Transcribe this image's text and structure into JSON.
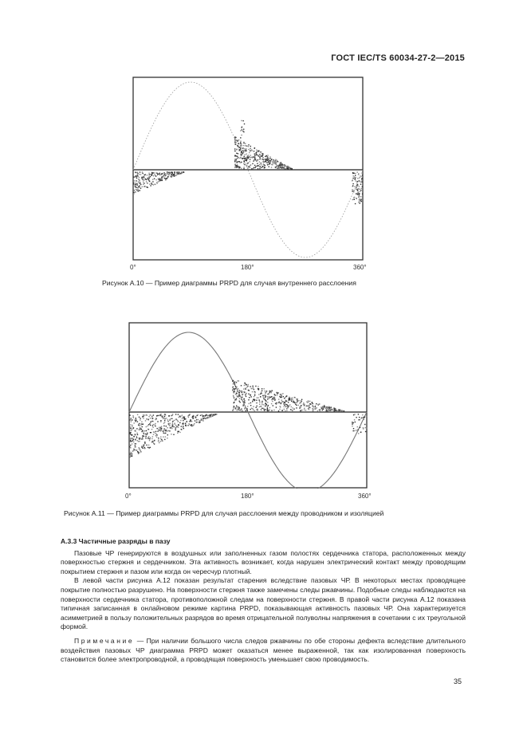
{
  "header": {
    "standard": "ГОСТ  IEC/TS 60034-27-2—2015"
  },
  "figures": [
    {
      "caption": "Рисунок А.10 — Пример диаграммы PRPD для случая внутреннего расслоения",
      "x_ticks": [
        "0°",
        "180°",
        "360°"
      ],
      "sine_style": "dotted"
    },
    {
      "caption": "Рисунок А.11 — Пример диаграммы PRPD для случая расслоения между проводником и изоляцией",
      "x_ticks": [
        "0°",
        "180°",
        "360°"
      ],
      "sine_style": "solid"
    }
  ],
  "section": {
    "heading": "А.3.3  Частичные разряды в пазу",
    "paragraphs": [
      "Пазовые ЧР генерируются в воздушных или заполненных газом полостях сердечника статора, расположенных между поверхностью стержня и сердечником. Эта активность возникает, когда нарушен электрический контакт между проводящим покрытием стержня и пазом или когда он чересчур плотный.",
      "В левой части рисунка А.12 показан результат старения вследствие пазовых ЧР. В некоторых местах проводящее покрытие полностью разрушено. На поверхности стержня также замечены следы ржавчины. Подобные следы наблюдаются на поверхности сердечника статора, противоположной следам на поверхности стержня. В правой части рисунка А.12 показана типичная записанная в онлайновом режиме картина PRPD, показывающая активность пазовых ЧР. Она характеризуется асимметрией в пользу положительных разрядов во время отрицательной полуволны напряжения в сочетании с их треугольной формой."
    ],
    "note_label": "Примечание",
    "note_text": " — При наличии большого числа следов ржавчины по обе стороны дефекта вследствие длительного воздействия пазовых ЧР диаграмма PRPD может оказаться менее выраженной, так как изолированная поверхность становится более электропроводной, а проводящая поверхность уменьшает свою проводимость."
  },
  "page_number": "35"
}
